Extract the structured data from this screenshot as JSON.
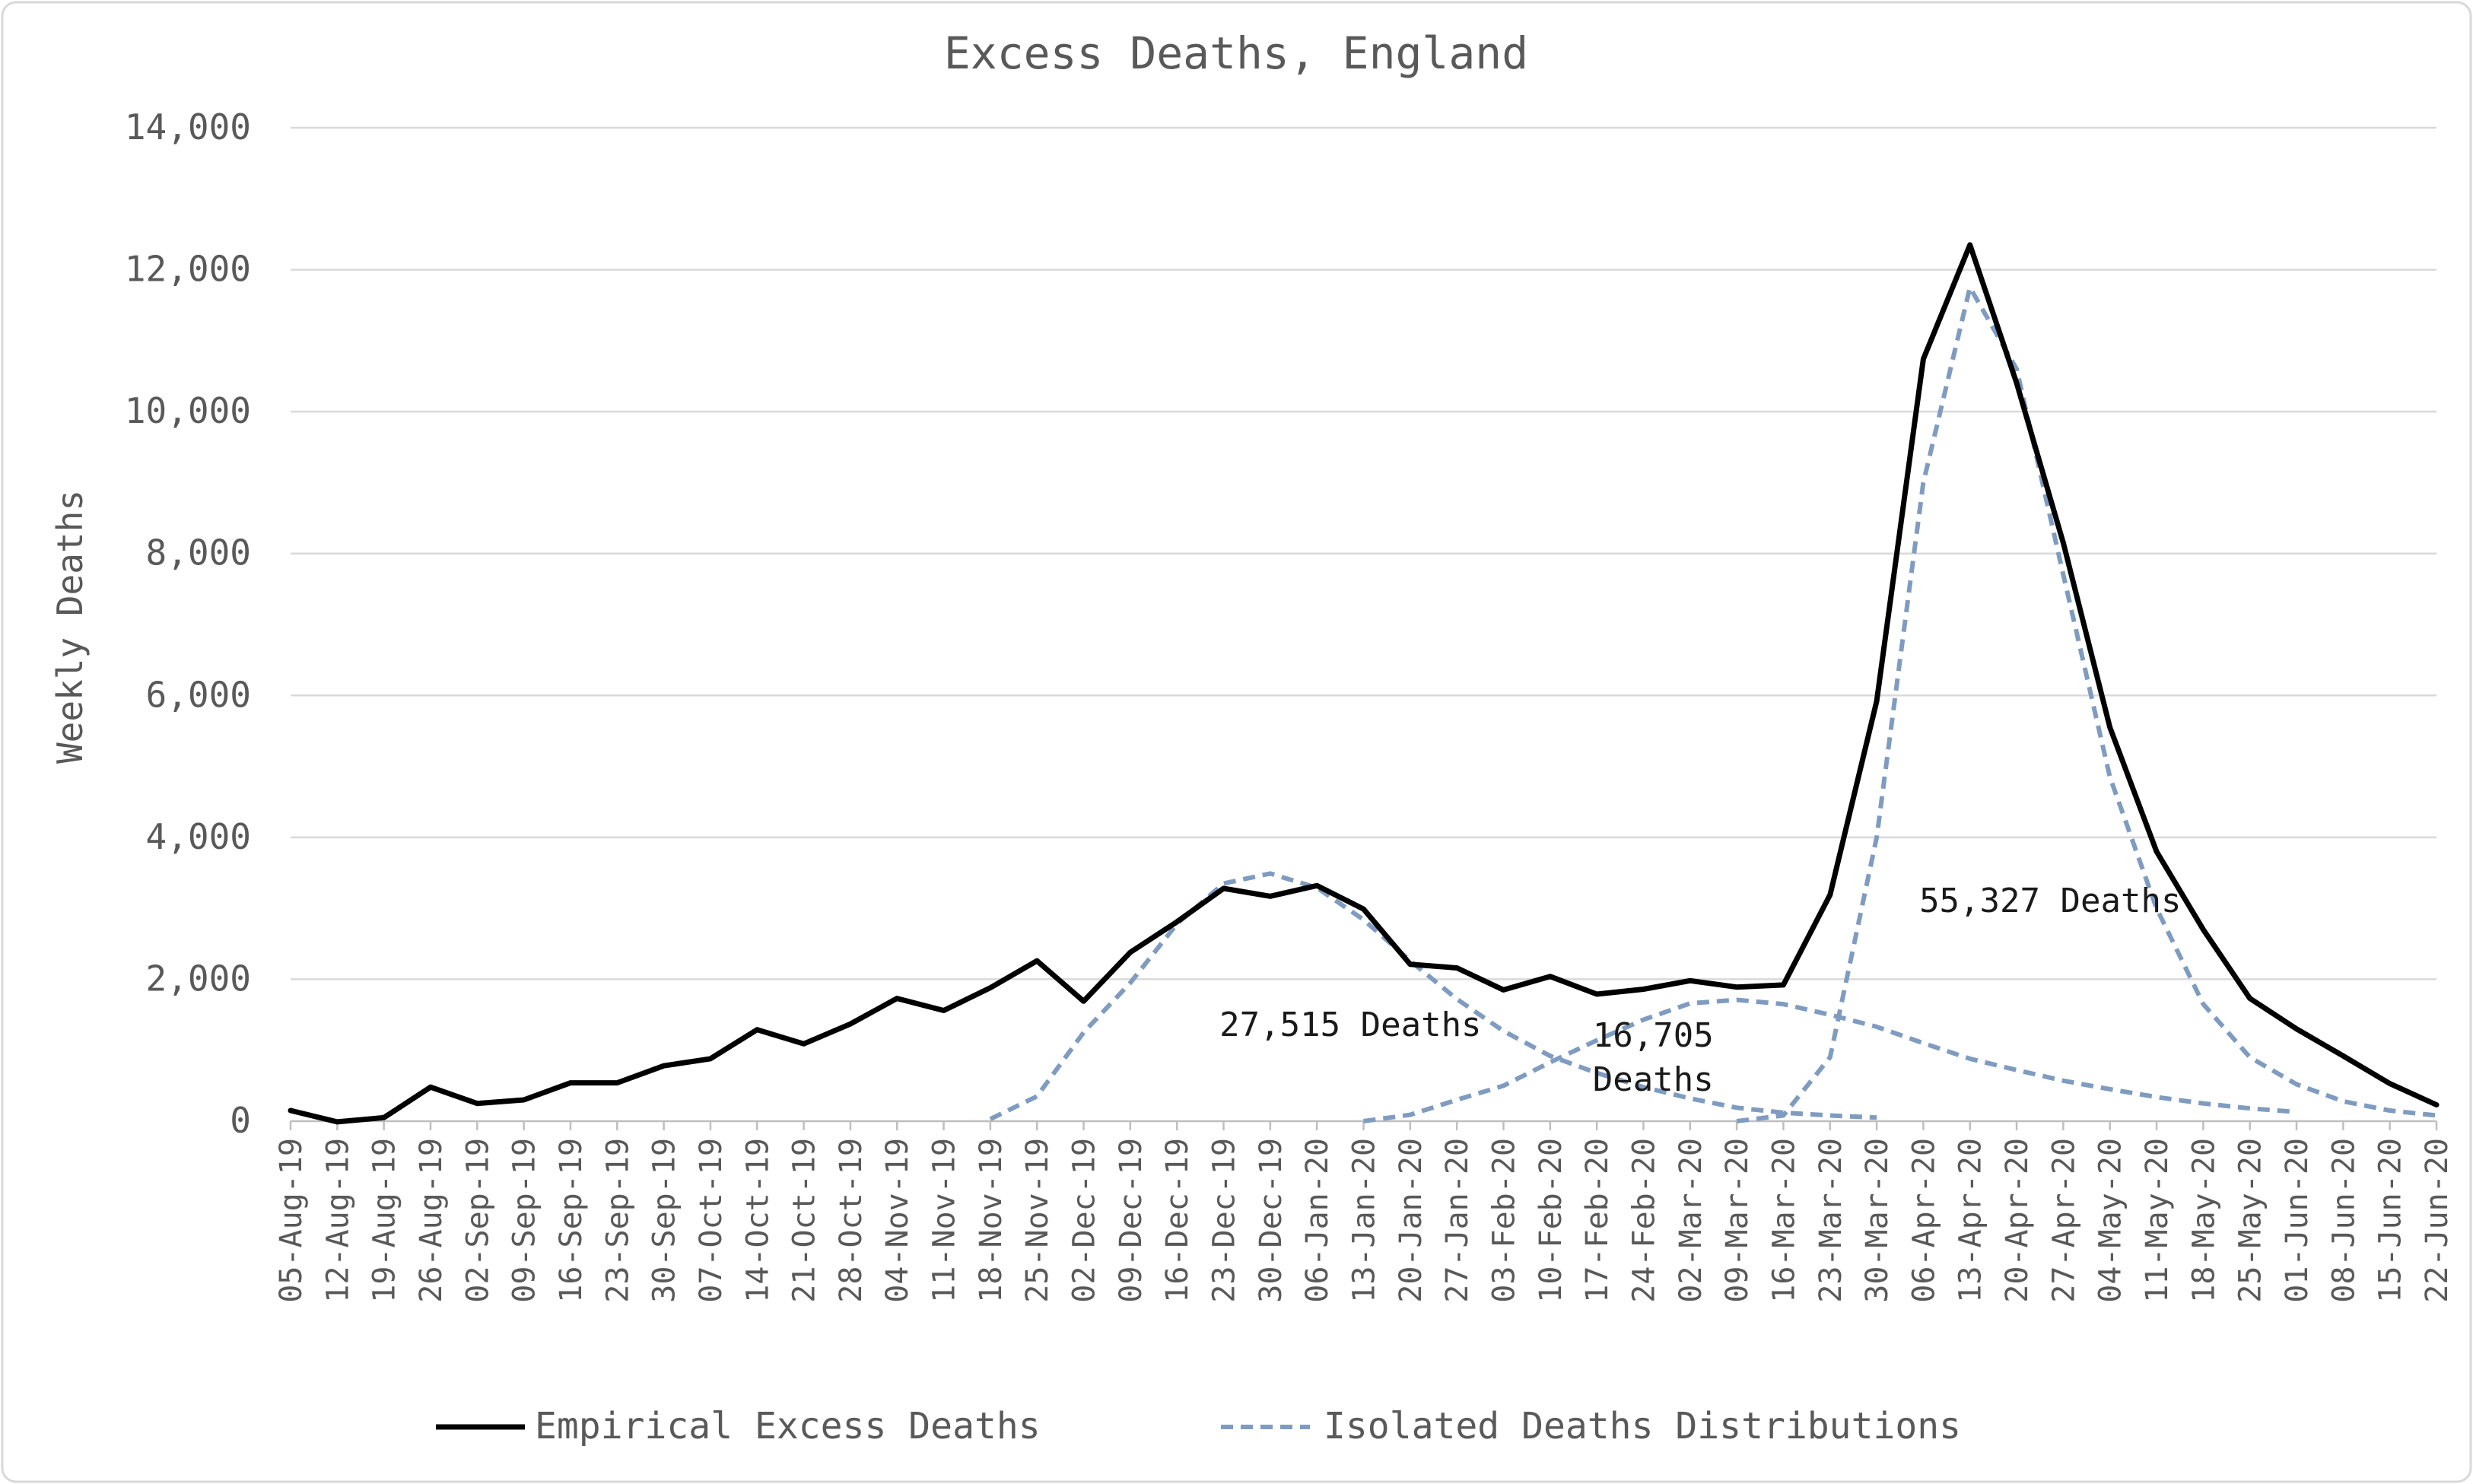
{
  "chart_data": {
    "type": "line",
    "title": "Excess Deaths, England",
    "ylabel": "Weekly Deaths",
    "xlabel": "",
    "ylim": [
      0,
      14000
    ],
    "y_ticks": [
      0,
      2000,
      4000,
      6000,
      8000,
      10000,
      12000,
      14000
    ],
    "y_tick_labels": [
      "0",
      "2,000",
      "4,000",
      "6,000",
      "8,000",
      "10,000",
      "12,000",
      "14,000"
    ],
    "grid": true,
    "legend_position": "bottom",
    "categories": [
      "05-Aug-19",
      "12-Aug-19",
      "19-Aug-19",
      "26-Aug-19",
      "02-Sep-19",
      "09-Sep-19",
      "16-Sep-19",
      "23-Sep-19",
      "30-Sep-19",
      "07-Oct-19",
      "14-Oct-19",
      "21-Oct-19",
      "28-Oct-19",
      "04-Nov-19",
      "11-Nov-19",
      "18-Nov-19",
      "25-Nov-19",
      "02-Dec-19",
      "09-Dec-19",
      "16-Dec-19",
      "23-Dec-19",
      "30-Dec-19",
      "06-Jan-20",
      "13-Jan-20",
      "20-Jan-20",
      "27-Jan-20",
      "03-Feb-20",
      "10-Feb-20",
      "17-Feb-20",
      "24-Feb-20",
      "02-Mar-20",
      "09-Mar-20",
      "16-Mar-20",
      "23-Mar-20",
      "30-Mar-20",
      "06-Apr-20",
      "13-Apr-20",
      "20-Apr-20",
      "27-Apr-20",
      "04-May-20",
      "11-May-20",
      "18-May-20",
      "25-May-20",
      "01-Jun-20",
      "08-Jun-20",
      "15-Jun-20",
      "22-Jun-20"
    ],
    "series": [
      {
        "name": "Empirical Excess Deaths",
        "style": "solid",
        "color": "#000000",
        "values": [
          150,
          -10,
          50,
          480,
          250,
          300,
          540,
          540,
          780,
          880,
          1290,
          1090,
          1370,
          1730,
          1560,
          1880,
          2260,
          1690,
          2380,
          2810,
          3280,
          3170,
          3320,
          2990,
          2210,
          2160,
          1850,
          2040,
          1790,
          1860,
          1980,
          1890,
          1920,
          3190,
          5920,
          10740,
          12350,
          10400,
          8150,
          5550,
          3800,
          2700,
          1730,
          1300,
          920,
          530,
          230
        ]
      },
      {
        "name": "Isolated Deaths Distributions",
        "style": "dashed",
        "color": "#7f9cc0",
        "values": [
          null,
          null,
          null,
          null,
          null,
          null,
          null,
          null,
          null,
          null,
          null,
          null,
          null,
          null,
          null,
          30,
          350,
          1250,
          1950,
          2780,
          3350,
          3490,
          3290,
          2840,
          2260,
          1720,
          1270,
          920,
          680,
          480,
          320,
          190,
          120,
          80,
          50,
          null,
          null,
          null,
          null,
          null,
          null,
          null,
          null,
          null,
          null,
          null,
          null
        ]
      },
      {
        "name": "Isolated Deaths Distributions",
        "style": "dashed",
        "color": "#7f9cc0",
        "values": [
          null,
          null,
          null,
          null,
          null,
          null,
          null,
          null,
          null,
          null,
          null,
          null,
          null,
          null,
          null,
          null,
          null,
          null,
          null,
          null,
          null,
          null,
          null,
          0,
          90,
          300,
          500,
          830,
          1140,
          1430,
          1660,
          1710,
          1650,
          1500,
          1330,
          1100,
          880,
          720,
          570,
          450,
          340,
          250,
          180,
          130,
          null,
          null,
          null
        ]
      },
      {
        "name": "Isolated Deaths Distributions",
        "style": "dashed",
        "color": "#7f9cc0",
        "values": [
          null,
          null,
          null,
          null,
          null,
          null,
          null,
          null,
          null,
          null,
          null,
          null,
          null,
          null,
          null,
          null,
          null,
          null,
          null,
          null,
          null,
          null,
          null,
          null,
          null,
          null,
          null,
          null,
          null,
          null,
          null,
          0,
          80,
          900,
          4000,
          9000,
          11750,
          10600,
          7700,
          4850,
          3000,
          1650,
          900,
          520,
          280,
          150,
          80
        ]
      }
    ],
    "annotations": [
      {
        "text": "27,515 Deaths",
        "x": "06-Jan-20",
        "y": 1200
      },
      {
        "text": "16,705",
        "x": "02-Mar-20",
        "y": 1050
      },
      {
        "text": "Deaths",
        "x": "02-Mar-20",
        "y": 430
      },
      {
        "text": "55,327 Deaths",
        "x": "20-Apr-20",
        "y": 2950
      }
    ],
    "legend": [
      {
        "label": "Empirical Excess Deaths",
        "style": "solid",
        "color": "#000000"
      },
      {
        "label": "Isolated Deaths Distributions",
        "style": "dashed",
        "color": "#7f9cc0"
      }
    ]
  }
}
